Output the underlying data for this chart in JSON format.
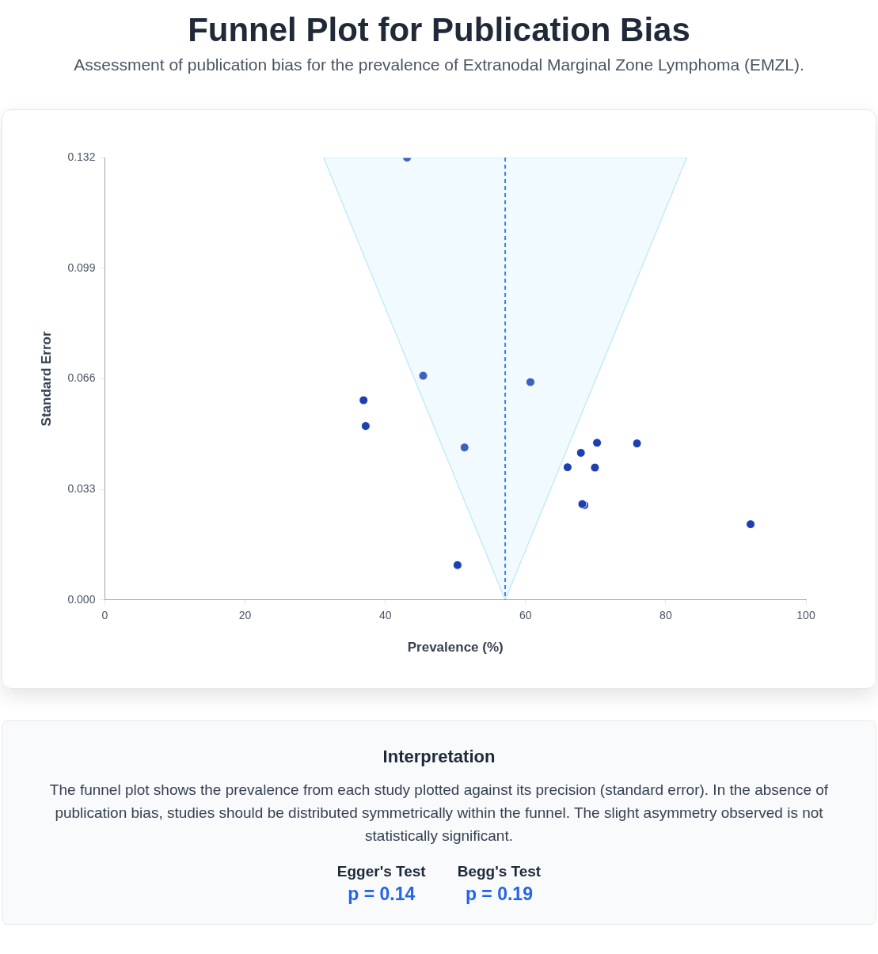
{
  "chart_data": {
    "type": "scatter",
    "title": "Funnel Plot for Publication Bias",
    "subtitle": "Assessment of publication bias for the prevalence of Extranodal Marginal Zone Lymphoma (EMZL).",
    "xlabel": "Prevalence (%)",
    "ylabel": "Standard Error",
    "xlim": [
      0,
      100
    ],
    "xticks": [
      0,
      20,
      40,
      60,
      80,
      100
    ],
    "ylim": [
      0,
      0.132
    ],
    "yticks": [
      {
        "value": 0,
        "label": "0.000"
      },
      0.033,
      0.066,
      0.099,
      0.132
    ],
    "grid": false,
    "legend": false,
    "series": [
      {
        "type": "area",
        "color": "#bae6fd",
        "x": [
          31.2,
          57.1,
          83.0,
          31.2
        ],
        "values": [
          0.132,
          0,
          0.132,
          0.132
        ]
      },
      {
        "type": "scatter",
        "marker": "circle",
        "color": "#1e40af",
        "x": [
          68.4,
          43.1,
          45.4,
          60.7,
          36.9,
          37.2,
          51.3,
          70.2,
          75.9,
          67.9,
          66.0,
          69.9,
          68.1,
          92.1,
          50.3
        ],
        "values": [
          0.0283,
          0.132,
          0.0669,
          0.065,
          0.0596,
          0.0519,
          0.0455,
          0.0469,
          0.0467,
          0.0439,
          0.0396,
          0.0395,
          0.0286,
          0.0226,
          0.0104
        ]
      }
    ],
    "ref_lines": [
      {
        "axis": "x",
        "value": 57.1,
        "color": "#3b82f6",
        "line_style": "dashed"
      }
    ],
    "annotations": [
      "Interpretation",
      "The funnel plot shows the prevalence from each study plotted against its precision (standard error). In the absence of publication bias, studies should be distributed symmetrically within the funnel. The slight asymmetry observed is not statistically significant.",
      "Egger's Test",
      "p = 0.14",
      "Begg's Test",
      "p = 0.19"
    ]
  }
}
